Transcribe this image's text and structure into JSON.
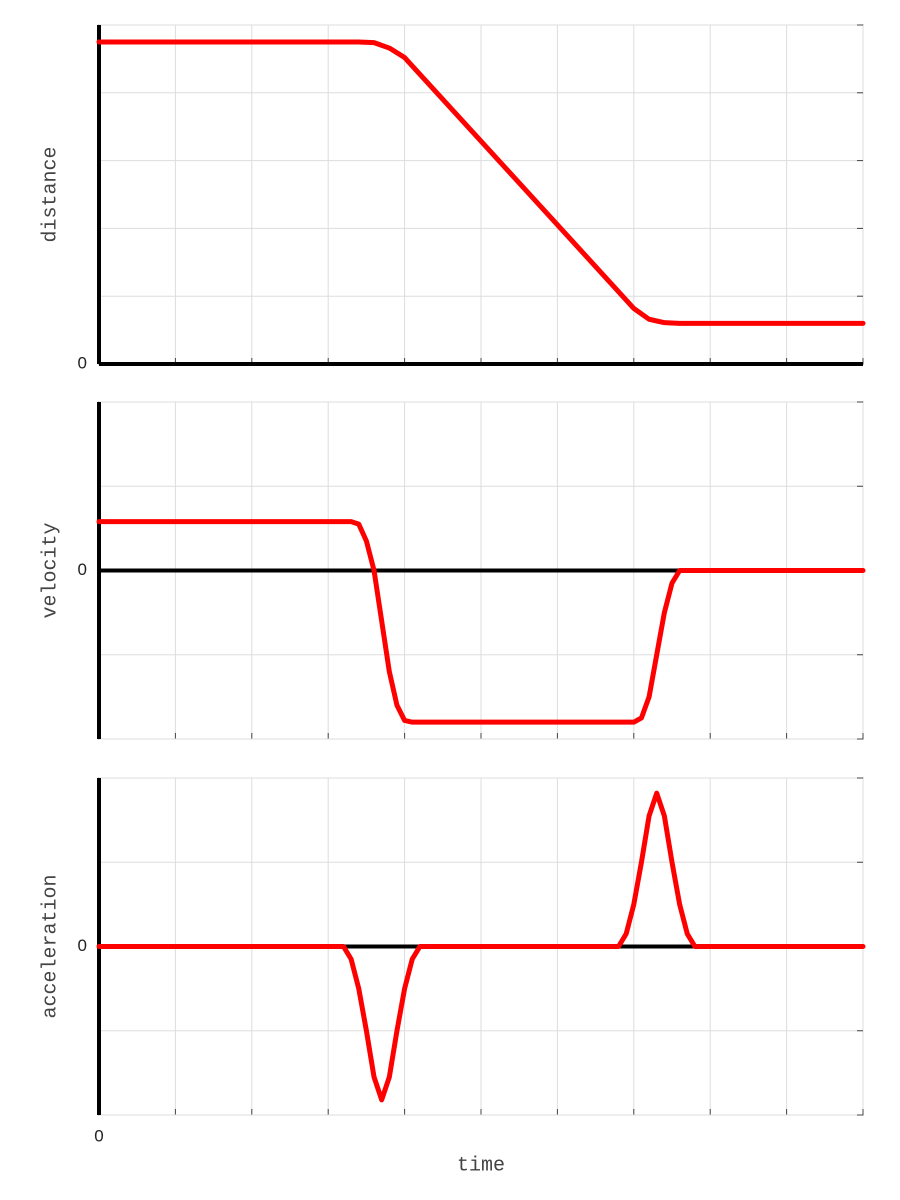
{
  "chart_data": [
    {
      "type": "line",
      "ylabel": "distance",
      "color": "#ff0000",
      "grid": true,
      "xlim": [
        0,
        10
      ],
      "ylim": [
        0,
        5
      ],
      "xticks": [
        {
          "value": 0,
          "label": null
        },
        {
          "value": 1,
          "label": null
        },
        {
          "value": 2,
          "label": null
        },
        {
          "value": 3,
          "label": null
        },
        {
          "value": 4,
          "label": null
        },
        {
          "value": 5,
          "label": null
        },
        {
          "value": 6,
          "label": null
        },
        {
          "value": 7,
          "label": null
        },
        {
          "value": 8,
          "label": null
        },
        {
          "value": 9,
          "label": null
        },
        {
          "value": 10,
          "label": null
        }
      ],
      "yticks": [
        0,
        {
          "value": 1,
          "label": null
        },
        {
          "value": 2,
          "label": null
        },
        {
          "value": 3,
          "label": null
        },
        {
          "value": 4,
          "label": null
        },
        {
          "value": 5,
          "label": null
        }
      ],
      "x": [
        0,
        3.4,
        3.6,
        3.8,
        4.0,
        7.0,
        7.2,
        7.4,
        7.6,
        10
      ],
      "values": [
        4.75,
        4.75,
        4.74,
        4.66,
        4.52,
        0.82,
        0.66,
        0.61,
        0.6,
        0.6
      ]
    },
    {
      "type": "line",
      "ylabel": "velocity",
      "color": "#ff0000",
      "grid": true,
      "xlim": [
        0,
        10
      ],
      "ylim": [
        -2,
        2
      ],
      "xticks": [
        {
          "value": 0,
          "label": null
        },
        {
          "value": 1,
          "label": null
        },
        {
          "value": 2,
          "label": null
        },
        {
          "value": 3,
          "label": null
        },
        {
          "value": 4,
          "label": null
        },
        {
          "value": 5,
          "label": null
        },
        {
          "value": 6,
          "label": null
        },
        {
          "value": 7,
          "label": null
        },
        {
          "value": 8,
          "label": null
        },
        {
          "value": 9,
          "label": null
        },
        {
          "value": 10,
          "label": null
        }
      ],
      "yticks": [
        {
          "value": -2,
          "label": null
        },
        {
          "value": -1,
          "label": null
        },
        0,
        {
          "value": 1,
          "label": null
        },
        {
          "value": 2,
          "label": null
        }
      ],
      "x": [
        0,
        3.3,
        3.4,
        3.5,
        3.6,
        3.7,
        3.8,
        3.9,
        4.0,
        4.1,
        7.0,
        7.1,
        7.2,
        7.3,
        7.4,
        7.5,
        7.6,
        10
      ],
      "values": [
        0.58,
        0.58,
        0.55,
        0.35,
        0.0,
        -0.6,
        -1.2,
        -1.6,
        -1.78,
        -1.8,
        -1.8,
        -1.75,
        -1.5,
        -1.0,
        -0.5,
        -0.15,
        0,
        0
      ]
    },
    {
      "type": "line",
      "ylabel": "acceleration",
      "xlabel": "time",
      "color": "#ff0000",
      "grid": true,
      "xlim": [
        0,
        10
      ],
      "ylim": [
        -2,
        2
      ],
      "xticks": [
        0,
        {
          "value": 1,
          "label": null
        },
        {
          "value": 2,
          "label": null
        },
        {
          "value": 3,
          "label": null
        },
        {
          "value": 4,
          "label": null
        },
        {
          "value": 5,
          "label": null
        },
        {
          "value": 6,
          "label": null
        },
        {
          "value": 7,
          "label": null
        },
        {
          "value": 8,
          "label": null
        },
        {
          "value": 9,
          "label": null
        },
        {
          "value": 10,
          "label": null
        }
      ],
      "yticks": [
        {
          "value": -2,
          "label": null
        },
        {
          "value": -1,
          "label": null
        },
        0,
        {
          "value": 1,
          "label": null
        },
        {
          "value": 2,
          "label": null
        }
      ],
      "x": [
        0,
        3.2,
        3.3,
        3.4,
        3.5,
        3.6,
        3.7,
        3.8,
        3.9,
        4.0,
        4.1,
        4.2,
        6.8,
        6.9,
        7.0,
        7.1,
        7.2,
        7.3,
        7.4,
        7.5,
        7.6,
        7.7,
        7.8,
        10
      ],
      "values": [
        0,
        0,
        -0.15,
        -0.5,
        -1.0,
        -1.55,
        -1.82,
        -1.55,
        -1.0,
        -0.5,
        -0.15,
        0,
        0,
        0.15,
        0.5,
        1.0,
        1.55,
        1.82,
        1.55,
        1.0,
        0.5,
        0.15,
        0,
        0
      ]
    }
  ]
}
